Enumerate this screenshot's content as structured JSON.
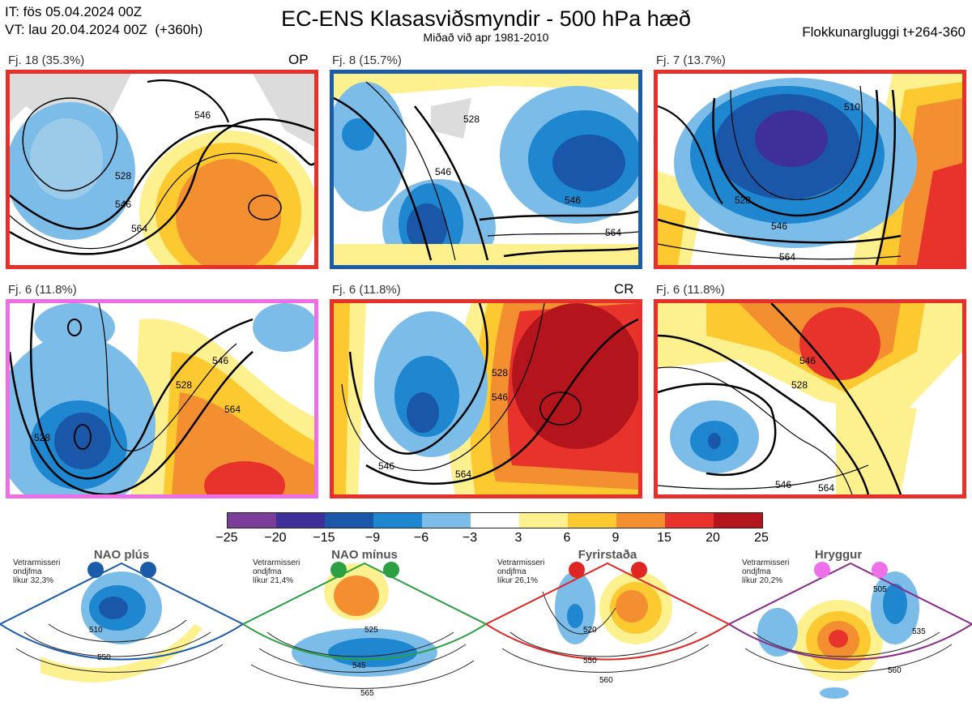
{
  "header": {
    "it_line": "IT: fös 05.04.2024 00Z",
    "vt_line": "VT: lau 20.04.2024 00Z  (+360h)",
    "title": "EC-ENS Klasasviðsmyndir - 500 hPa hæð",
    "subtitle": "Miðað við apr 1981-2010",
    "window": "Flokkunargluggi t+264-360"
  },
  "panels": [
    {
      "label": "Fj. 18 (35.3%)",
      "tag": "OP",
      "border": "#e8302a",
      "contours": [
        "528",
        "546",
        "564",
        "546"
      ]
    },
    {
      "label": "Fj. 8 (15.7%)",
      "tag": "",
      "border": "#1a5ca8",
      "contours": [
        "528",
        "546",
        "564",
        "546"
      ]
    },
    {
      "label": "Fj. 7 (13.7%)",
      "tag": "",
      "border": "#e8302a",
      "contours": [
        "528",
        "546",
        "564",
        "510"
      ]
    },
    {
      "label": "Fj. 6 (11.8%)",
      "tag": "",
      "border": "#ee6ee8",
      "contours": [
        "528",
        "546",
        "564",
        "528"
      ]
    },
    {
      "label": "Fj. 6 (11.8%)",
      "tag": "CR",
      "border": "#e8302a",
      "contours": [
        "528",
        "546",
        "564",
        "546"
      ]
    },
    {
      "label": "Fj. 6 (11.8%)",
      "tag": "",
      "border": "#e8302a",
      "contours": [
        "528",
        "546",
        "564",
        "546"
      ]
    }
  ],
  "colorbar": {
    "ticks": [
      "−25",
      "−20",
      "−15",
      "−9",
      "−6",
      "−3",
      "3",
      "6",
      "9",
      "15",
      "20",
      "25"
    ],
    "colors": [
      "#7a3d98",
      "#3f2f99",
      "#1a57a8",
      "#1f86d0",
      "#7bbde8",
      "#ffffff",
      "#fdf08f",
      "#fcc930",
      "#f38f30",
      "#e8322c",
      "#b4141c"
    ]
  },
  "regimes": [
    {
      "name": "NAO plús",
      "text1": "Vetrarmisseri",
      "text2": "ondjfma",
      "text3": "líkur 32,3%",
      "color": "#1a5ca8",
      "dot": "#1a5ca8",
      "contours": [
        "510",
        "550"
      ]
    },
    {
      "name": "NAO mínus",
      "text1": "Vetrarmisseri",
      "text2": "ondjfma",
      "text3": "líkur 21,4%",
      "color": "#2aa043",
      "dot": "#2aa043",
      "contours": [
        "525",
        "545",
        "565"
      ]
    },
    {
      "name": "Fyrirstaða",
      "text1": "Vetrarmisseri",
      "text2": "ondjfma",
      "text3": "líkur 26,1%",
      "color": "#e02525",
      "dot": "#e02525",
      "contours": [
        "520",
        "550",
        "560"
      ]
    },
    {
      "name": "Hryggur",
      "text1": "Vetrarmisseri",
      "text2": "ondjfma",
      "text3": "líkur 20,2%",
      "color": "#8a2a8a",
      "dot": "#ee70e8",
      "contours": [
        "505",
        "535",
        "560"
      ]
    }
  ]
}
